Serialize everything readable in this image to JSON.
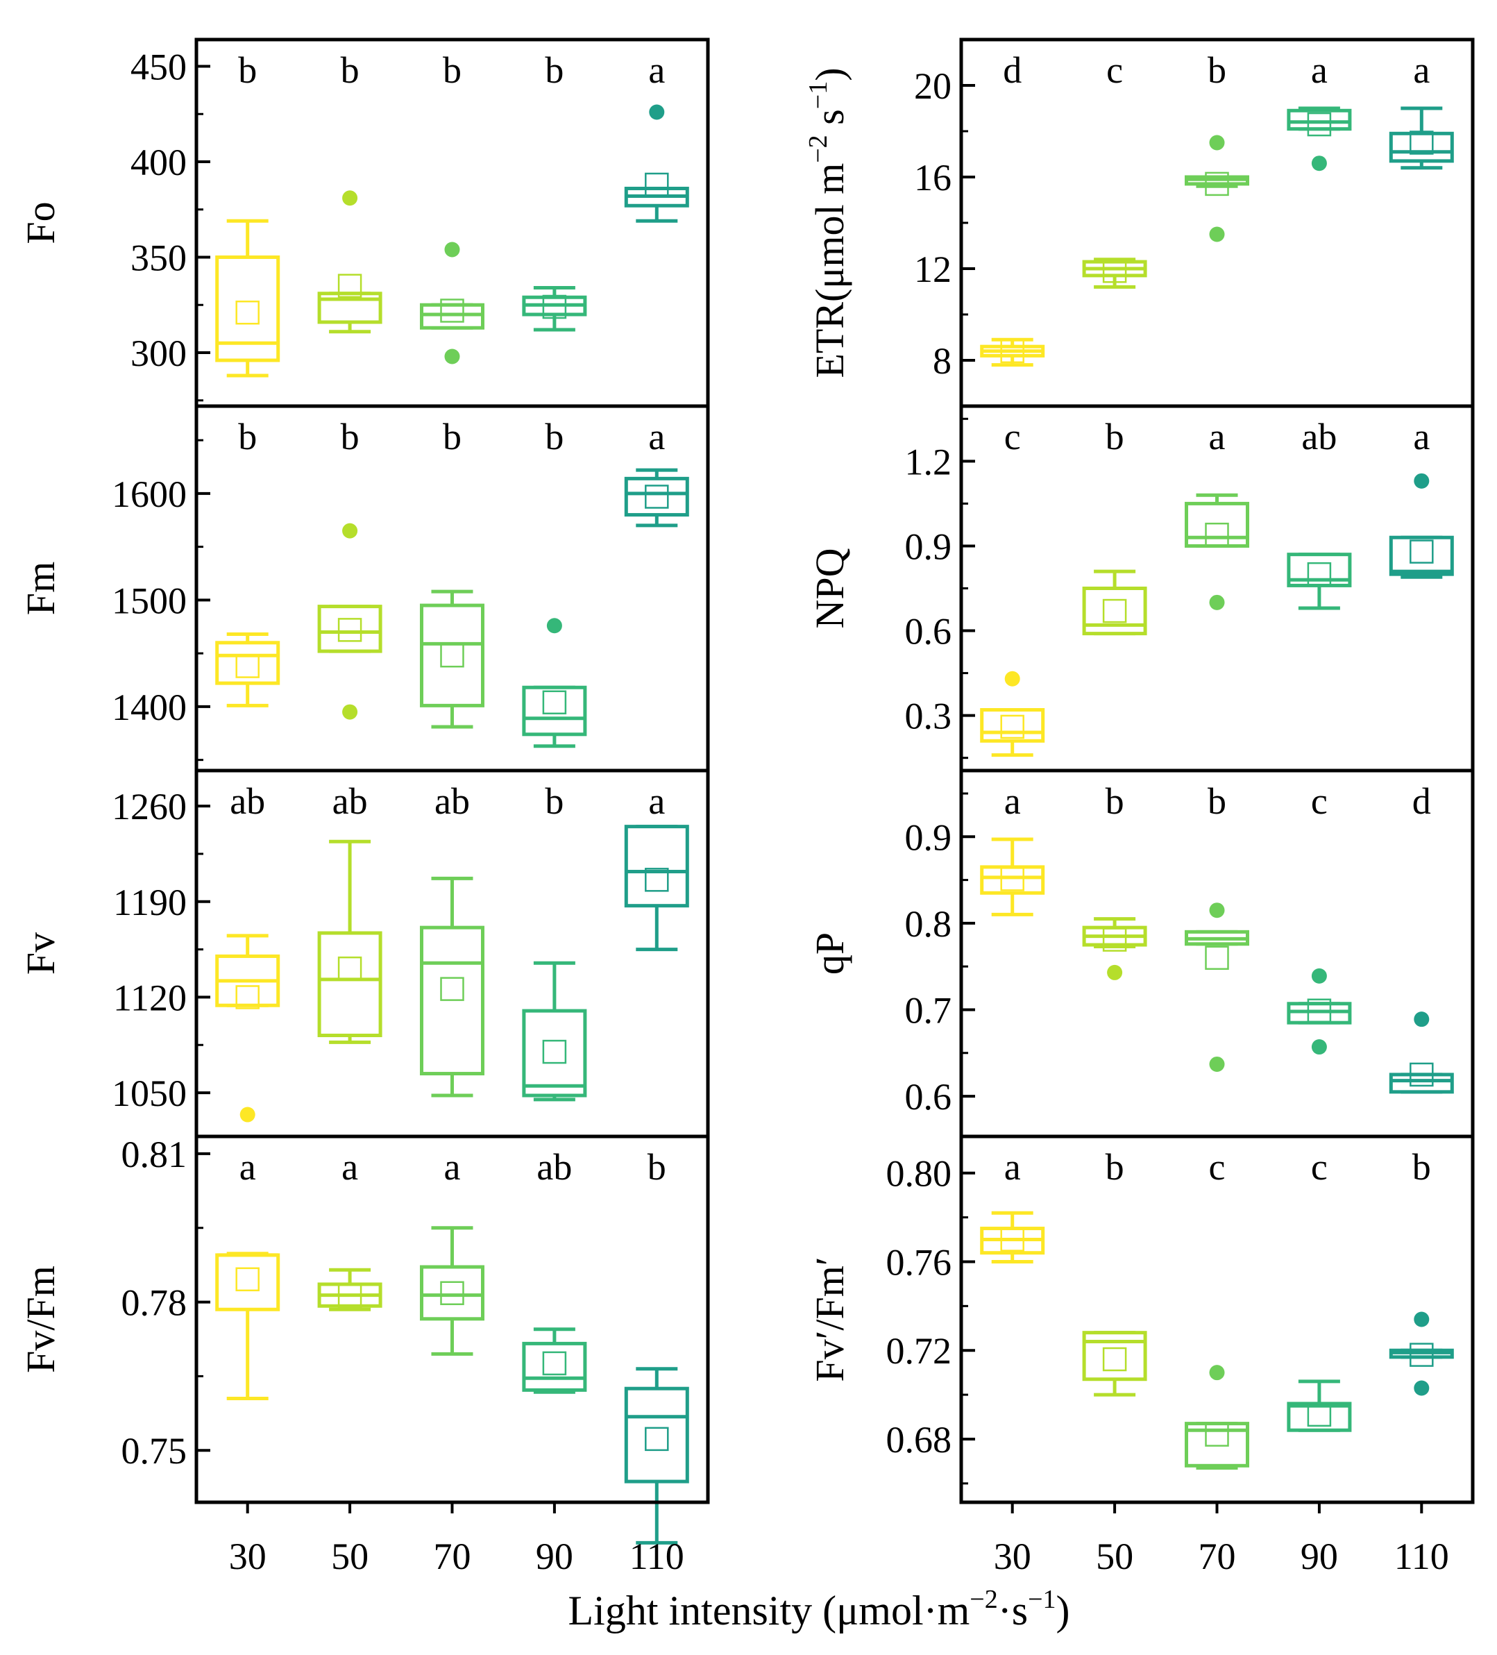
{
  "chart_data": {
    "type": "box",
    "x_title": "Light intensity (μmol·m",
    "x_title_exp1": "−2",
    "x_title_mid": "·s",
    "x_title_exp2": "−1",
    "x_title_end": ")",
    "categories": [
      "30",
      "50",
      "70",
      "90",
      "110"
    ],
    "colors": [
      "#fde725",
      "#b5de2b",
      "#6ece58",
      "#35b779",
      "#1f9e89"
    ],
    "panels": [
      {
        "id": "fo",
        "ylabel": "Fo",
        "ylim": [
          272,
          464
        ],
        "ticks": [
          300,
          350,
          400,
          450
        ],
        "tick_labels": [
          "300",
          "350",
          "400",
          "450"
        ],
        "minor_step": 25,
        "letters": [
          "b",
          "b",
          "b",
          "b",
          "a"
        ],
        "boxes": [
          {
            "whislo": 288,
            "q1": 296,
            "med": 305,
            "q3": 350,
            "whishi": 369,
            "mean": 321,
            "fliers": []
          },
          {
            "whislo": 311,
            "q1": 316,
            "med": 328,
            "q3": 331,
            "whishi": 331,
            "mean": 335,
            "fliers": [
              381
            ]
          },
          {
            "whislo": 313,
            "q1": 313,
            "med": 320,
            "q3": 325,
            "whishi": 325,
            "mean": 322,
            "fliers": [
              354,
              298
            ]
          },
          {
            "whislo": 312,
            "q1": 320,
            "med": 325,
            "q3": 329,
            "whishi": 334,
            "mean": 324,
            "fliers": []
          },
          {
            "whislo": 369,
            "q1": 377,
            "med": 382,
            "q3": 386,
            "whishi": 386,
            "mean": 388,
            "fliers": [
              426
            ]
          }
        ]
      },
      {
        "id": "fm",
        "ylabel": "Fm",
        "ylim": [
          1340,
          1682
        ],
        "ticks": [
          1400,
          1500,
          1600
        ],
        "tick_labels": [
          "1400",
          "1500",
          "1600"
        ],
        "minor_step": 50,
        "letters": [
          "b",
          "b",
          "b",
          "b",
          "a"
        ],
        "boxes": [
          {
            "whislo": 1401,
            "q1": 1422,
            "med": 1448,
            "q3": 1460,
            "whishi": 1468,
            "mean": 1438,
            "fliers": []
          },
          {
            "whislo": 1452,
            "q1": 1452,
            "med": 1470,
            "q3": 1494,
            "whishi": 1494,
            "mean": 1472,
            "fliers": [
              1565,
              1395
            ]
          },
          {
            "whislo": 1381,
            "q1": 1401,
            "med": 1459,
            "q3": 1495,
            "whishi": 1508,
            "mean": 1448,
            "fliers": []
          },
          {
            "whislo": 1363,
            "q1": 1374,
            "med": 1389,
            "q3": 1418,
            "whishi": 1418,
            "mean": 1404,
            "fliers": [
              1476
            ]
          },
          {
            "whislo": 1570,
            "q1": 1580,
            "med": 1600,
            "q3": 1614,
            "whishi": 1622,
            "mean": 1597,
            "fliers": []
          }
        ]
      },
      {
        "id": "fv",
        "ylabel": "Fv",
        "ylim": [
          1018,
          1286
        ],
        "ticks": [
          1050,
          1120,
          1190,
          1260
        ],
        "tick_labels": [
          "1050",
          "1120",
          "1190",
          "1260"
        ],
        "minor_step": 35,
        "letters": [
          "ab",
          "ab",
          "ab",
          "b",
          "a"
        ],
        "boxes": [
          {
            "whislo": 1114,
            "q1": 1114,
            "med": 1132,
            "q3": 1150,
            "whishi": 1165,
            "mean": 1120,
            "fliers": [
              1034
            ]
          },
          {
            "whislo": 1087,
            "q1": 1092,
            "med": 1133,
            "q3": 1167,
            "whishi": 1234,
            "mean": 1141,
            "fliers": []
          },
          {
            "whislo": 1048,
            "q1": 1064,
            "med": 1145,
            "q3": 1171,
            "whishi": 1207,
            "mean": 1126,
            "fliers": []
          },
          {
            "whislo": 1045,
            "q1": 1048,
            "med": 1055,
            "q3": 1110,
            "whishi": 1145,
            "mean": 1080,
            "fliers": []
          },
          {
            "whislo": 1155,
            "q1": 1187,
            "med": 1212,
            "q3": 1245,
            "whishi": 1245,
            "mean": 1206,
            "fliers": []
          }
        ]
      },
      {
        "id": "fvfm",
        "ylabel": "Fv/Fm",
        "ylim": [
          0.7395,
          0.8135
        ],
        "ticks": [
          0.75,
          0.78,
          0.81
        ],
        "tick_labels": [
          "0.75",
          "0.78",
          "0.81"
        ],
        "minor_step": 0.015,
        "letters": [
          "a",
          "a",
          "a",
          "ab",
          "b"
        ],
        "boxes": [
          {
            "whislo": 0.7605,
            "q1": 0.7785,
            "med": 0.7895,
            "q3": 0.7895,
            "whishi": 0.7898,
            "mean": 0.7846,
            "fliers": []
          },
          {
            "whislo": 0.7785,
            "q1": 0.7792,
            "med": 0.7814,
            "q3": 0.7836,
            "whishi": 0.7865,
            "mean": 0.7812,
            "fliers": []
          },
          {
            "whislo": 0.7695,
            "q1": 0.7766,
            "med": 0.7814,
            "q3": 0.7871,
            "whishi": 0.795,
            "mean": 0.7818,
            "fliers": []
          },
          {
            "whislo": 0.7618,
            "q1": 0.7622,
            "med": 0.7646,
            "q3": 0.7716,
            "whishi": 0.7745,
            "mean": 0.7676,
            "fliers": []
          },
          {
            "whislo": 0.7313,
            "q1": 0.7437,
            "med": 0.7568,
            "q3": 0.7625,
            "whishi": 0.7665,
            "mean": 0.7523,
            "fliers": []
          }
        ]
      },
      {
        "id": "etr",
        "ylabel": "ETR(μmol m",
        "ylabel_exp1": "−2",
        "ylabel_mid": " s",
        "ylabel_exp2": "−1",
        "ylabel_end": ")",
        "ylim": [
          6,
          22
        ],
        "ticks": [
          8,
          12,
          16,
          20
        ],
        "tick_labels": [
          "8",
          "12",
          "16",
          "20"
        ],
        "minor_step": 2,
        "letters": [
          "d",
          "c",
          "b",
          "a",
          "a"
        ],
        "boxes": [
          {
            "whislo": 7.8,
            "q1": 8.2,
            "med": 8.4,
            "q3": 8.6,
            "whishi": 8.9,
            "mean": 8.4,
            "fliers": []
          },
          {
            "whislo": 11.2,
            "q1": 11.7,
            "med": 12.0,
            "q3": 12.3,
            "whishi": 12.4,
            "mean": 11.9,
            "fliers": []
          },
          {
            "whislo": 15.6,
            "q1": 15.7,
            "med": 15.9,
            "q3": 16.0,
            "whishi": 16.0,
            "mean": 15.7,
            "fliers": [
              17.5,
              13.5
            ]
          },
          {
            "whislo": 18.1,
            "q1": 18.1,
            "med": 18.4,
            "q3": 18.9,
            "whishi": 19.0,
            "mean": 18.3,
            "fliers": [
              16.6
            ]
          },
          {
            "whislo": 16.4,
            "q1": 16.7,
            "med": 17.1,
            "q3": 17.9,
            "whishi": 19.0,
            "mean": 17.5,
            "fliers": []
          }
        ]
      },
      {
        "id": "npq",
        "ylabel": "NPQ",
        "ylim": [
          0.105,
          1.395
        ],
        "ticks": [
          0.3,
          0.6,
          0.9,
          1.2
        ],
        "tick_labels": [
          "0.3",
          "0.6",
          "0.9",
          "1.2"
        ],
        "minor_step": 0.15,
        "letters": [
          "c",
          "b",
          "a",
          "ab",
          "a"
        ],
        "boxes": [
          {
            "whislo": 0.16,
            "q1": 0.21,
            "med": 0.24,
            "q3": 0.32,
            "whishi": 0.32,
            "mean": 0.26,
            "fliers": [
              0.43
            ]
          },
          {
            "whislo": 0.59,
            "q1": 0.59,
            "med": 0.62,
            "q3": 0.75,
            "whishi": 0.81,
            "mean": 0.67,
            "fliers": []
          },
          {
            "whislo": 0.9,
            "q1": 0.9,
            "med": 0.93,
            "q3": 1.05,
            "whishi": 1.08,
            "mean": 0.94,
            "fliers": [
              0.7
            ]
          },
          {
            "whislo": 0.68,
            "q1": 0.76,
            "med": 0.78,
            "q3": 0.87,
            "whishi": 0.87,
            "mean": 0.8,
            "fliers": []
          },
          {
            "whislo": 0.79,
            "q1": 0.8,
            "med": 0.81,
            "q3": 0.93,
            "whishi": 0.93,
            "mean": 0.88,
            "fliers": [
              1.13
            ]
          }
        ]
      },
      {
        "id": "qp",
        "ylabel": "qP",
        "ylim": [
          0.5535,
          0.9765
        ],
        "ticks": [
          0.6,
          0.7,
          0.8,
          0.9
        ],
        "tick_labels": [
          "0.6",
          "0.7",
          "0.8",
          "0.9"
        ],
        "minor_step": 0.05,
        "letters": [
          "a",
          "b",
          "b",
          "c",
          "d"
        ],
        "boxes": [
          {
            "whislo": 0.81,
            "q1": 0.835,
            "med": 0.853,
            "q3": 0.865,
            "whishi": 0.897,
            "mean": 0.851,
            "fliers": []
          },
          {
            "whislo": 0.773,
            "q1": 0.775,
            "med": 0.785,
            "q3": 0.795,
            "whishi": 0.805,
            "mean": 0.781,
            "fliers": [
              0.743
            ]
          },
          {
            "whislo": 0.776,
            "q1": 0.776,
            "med": 0.782,
            "q3": 0.79,
            "whishi": 0.79,
            "mean": 0.76,
            "fliers": [
              0.815,
              0.637
            ]
          },
          {
            "whislo": 0.685,
            "q1": 0.685,
            "med": 0.698,
            "q3": 0.707,
            "whishi": 0.707,
            "mean": 0.699,
            "fliers": [
              0.739,
              0.657
            ]
          },
          {
            "whislo": 0.605,
            "q1": 0.605,
            "med": 0.618,
            "q3": 0.625,
            "whishi": 0.625,
            "mean": 0.625,
            "fliers": [
              0.689
            ]
          }
        ]
      },
      {
        "id": "fvpfmp",
        "ylabel": "Fv′/Fm′",
        "ylim": [
          0.6515,
          0.8165
        ],
        "ticks": [
          0.68,
          0.72,
          0.76,
          0.8
        ],
        "tick_labels": [
          "0.68",
          "0.72",
          "0.76",
          "0.80"
        ],
        "minor_step": 0.02,
        "letters": [
          "a",
          "b",
          "c",
          "c",
          "b"
        ],
        "boxes": [
          {
            "whislo": 0.76,
            "q1": 0.764,
            "med": 0.77,
            "q3": 0.775,
            "whishi": 0.782,
            "mean": 0.77,
            "fliers": []
          },
          {
            "whislo": 0.7,
            "q1": 0.707,
            "med": 0.724,
            "q3": 0.728,
            "whishi": 0.728,
            "mean": 0.716,
            "fliers": []
          },
          {
            "whislo": 0.667,
            "q1": 0.668,
            "med": 0.684,
            "q3": 0.687,
            "whishi": 0.687,
            "mean": 0.682,
            "fliers": [
              0.71
            ]
          },
          {
            "whislo": 0.684,
            "q1": 0.684,
            "med": 0.695,
            "q3": 0.696,
            "whishi": 0.706,
            "mean": 0.691,
            "fliers": []
          },
          {
            "whislo": 0.717,
            "q1": 0.717,
            "med": 0.719,
            "q3": 0.72,
            "whishi": 0.72,
            "mean": 0.718,
            "fliers": [
              0.734,
              0.703
            ]
          }
        ]
      }
    ]
  }
}
